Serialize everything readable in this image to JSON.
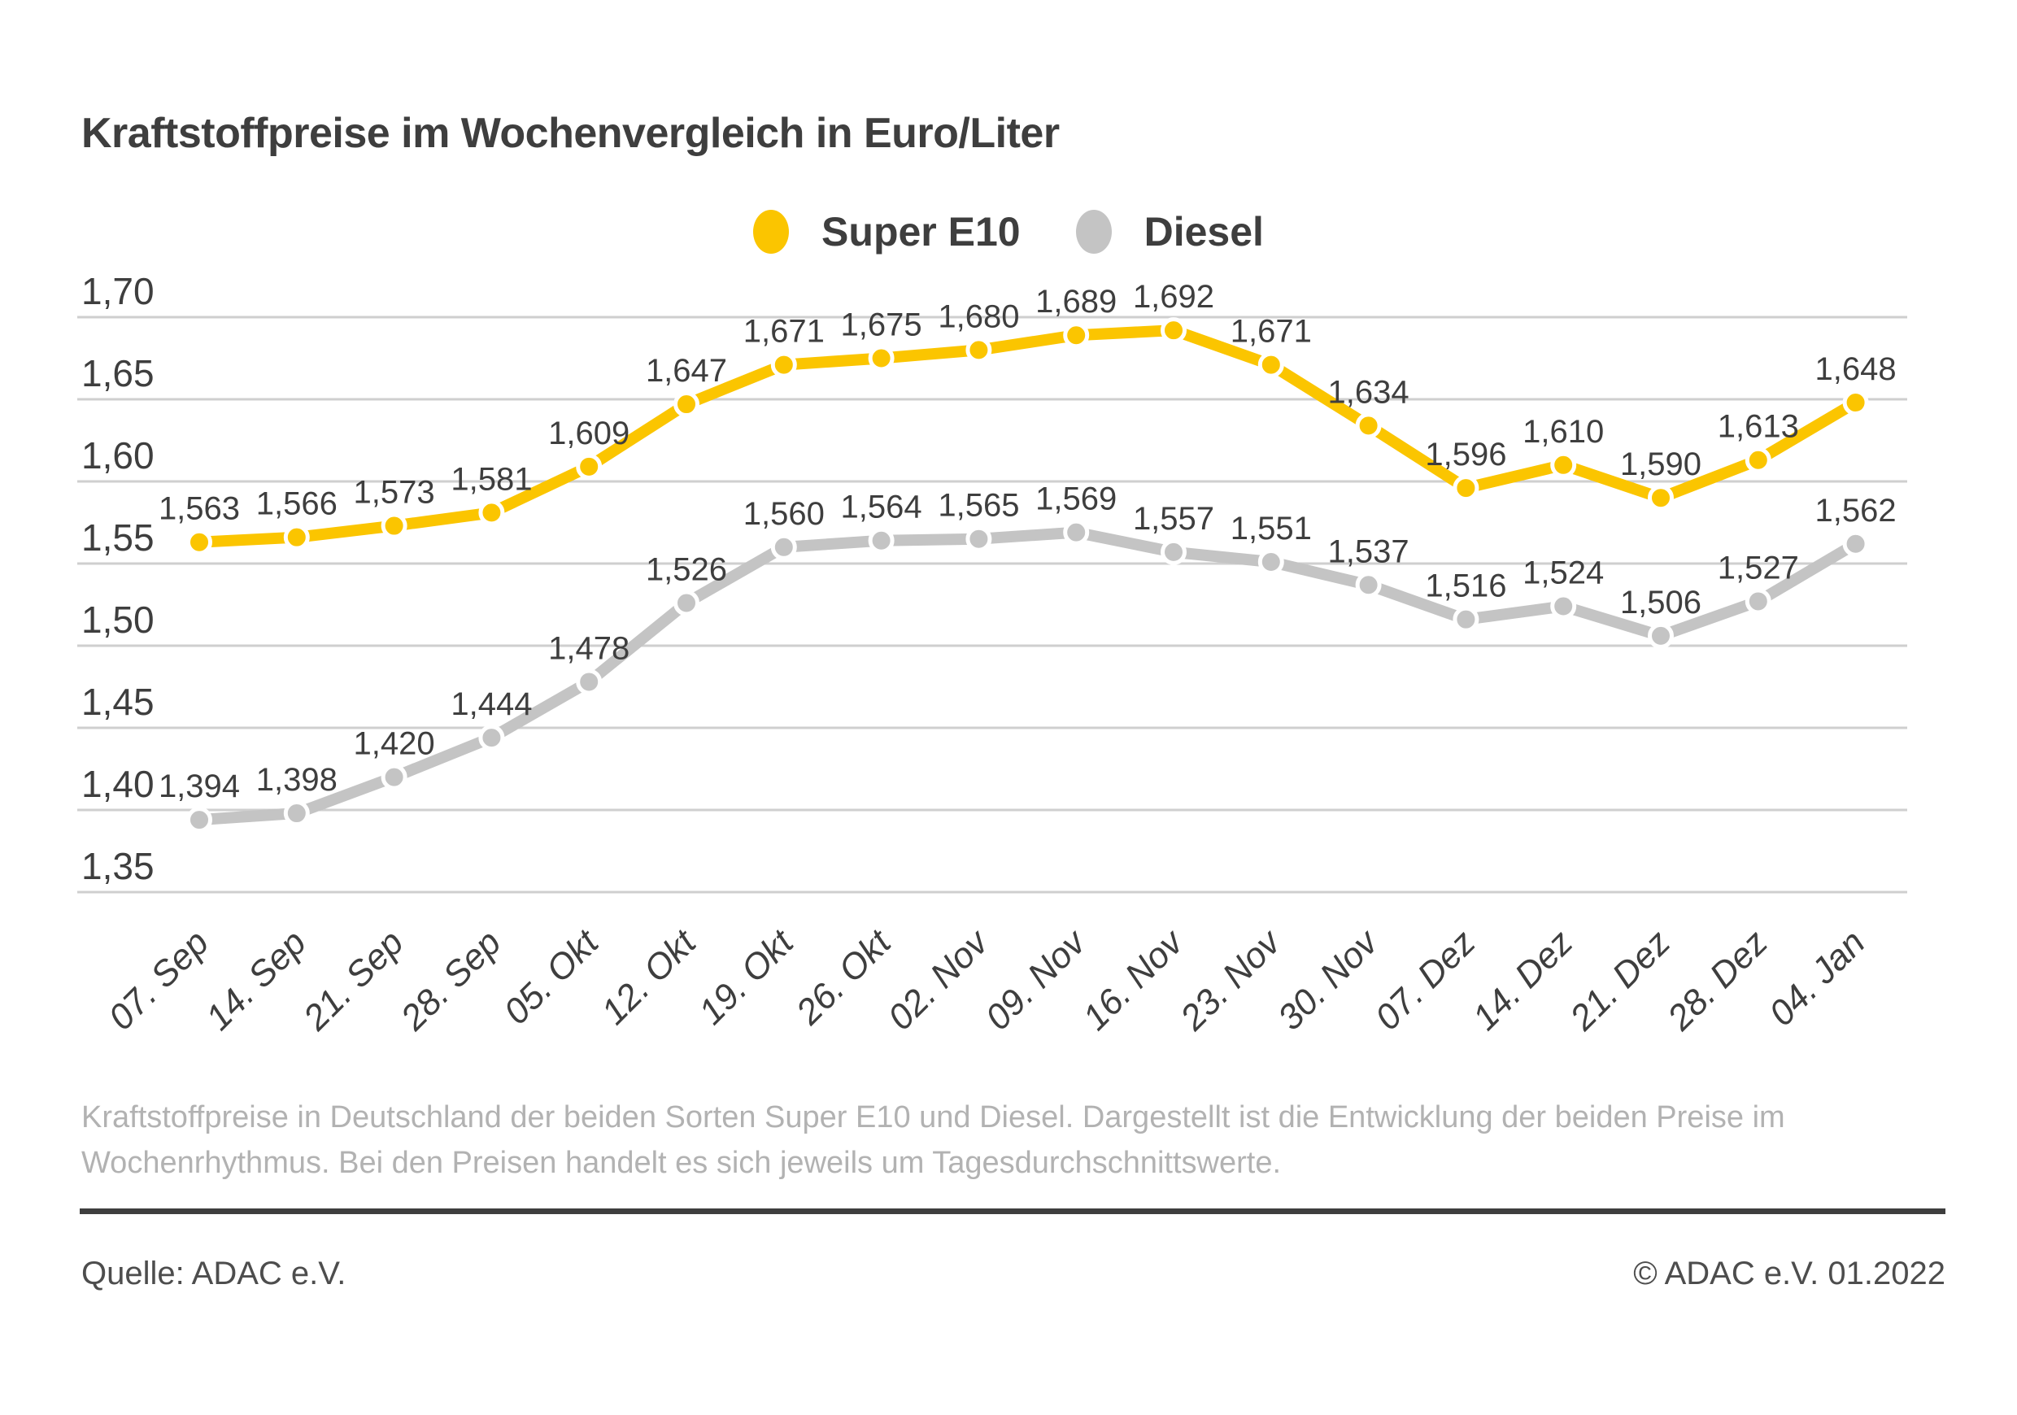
{
  "title": "Kraftstoffpreise im Wochenvergleich in Euro/Liter",
  "chart_data": {
    "type": "line",
    "title": "Kraftstoffpreise im Wochenvergleich in Euro/Liter",
    "x": [
      "07. Sep",
      "14. Sep",
      "21. Sep",
      "28. Sep",
      "05. Okt",
      "12. Okt",
      "19. Okt",
      "26. Okt",
      "02. Nov",
      "09. Nov",
      "16. Nov",
      "23. Nov",
      "30. Nov",
      "07. Dez",
      "14. Dez",
      "21. Dez",
      "28. Dez",
      "04. Jan"
    ],
    "series": [
      {
        "name": "Super E10",
        "color": "#FBC500",
        "values": [
          1.563,
          1.566,
          1.573,
          1.581,
          1.609,
          1.647,
          1.671,
          1.675,
          1.68,
          1.689,
          1.692,
          1.671,
          1.634,
          1.596,
          1.61,
          1.59,
          1.613,
          1.648
        ]
      },
      {
        "name": "Diesel",
        "color": "#C4C4C4",
        "values": [
          1.394,
          1.398,
          1.42,
          1.444,
          1.478,
          1.526,
          1.56,
          1.564,
          1.565,
          1.569,
          1.557,
          1.551,
          1.537,
          1.516,
          1.524,
          1.506,
          1.527,
          1.562
        ]
      }
    ],
    "ylim": [
      1.35,
      1.7
    ],
    "ytick_step": 0.05,
    "grid": true,
    "legend_position": "top-center",
    "value_labels": true,
    "decimal_separator": ",",
    "ylabel": "",
    "xlabel": ""
  },
  "footnote": {
    "lines": [
      "Kraftstoffpreise in Deutschland der beiden Sorten Super E10 und Diesel. Dargestellt ist die Entwicklung der beiden Preise im",
      "Wochenrhythmus. Bei den Preisen handelt es sich jeweils um Tagesdurchschnittswerte."
    ]
  },
  "source": {
    "left": "Quelle: ADAC e.V.",
    "right": "© ADAC e.V. 01.2022"
  }
}
